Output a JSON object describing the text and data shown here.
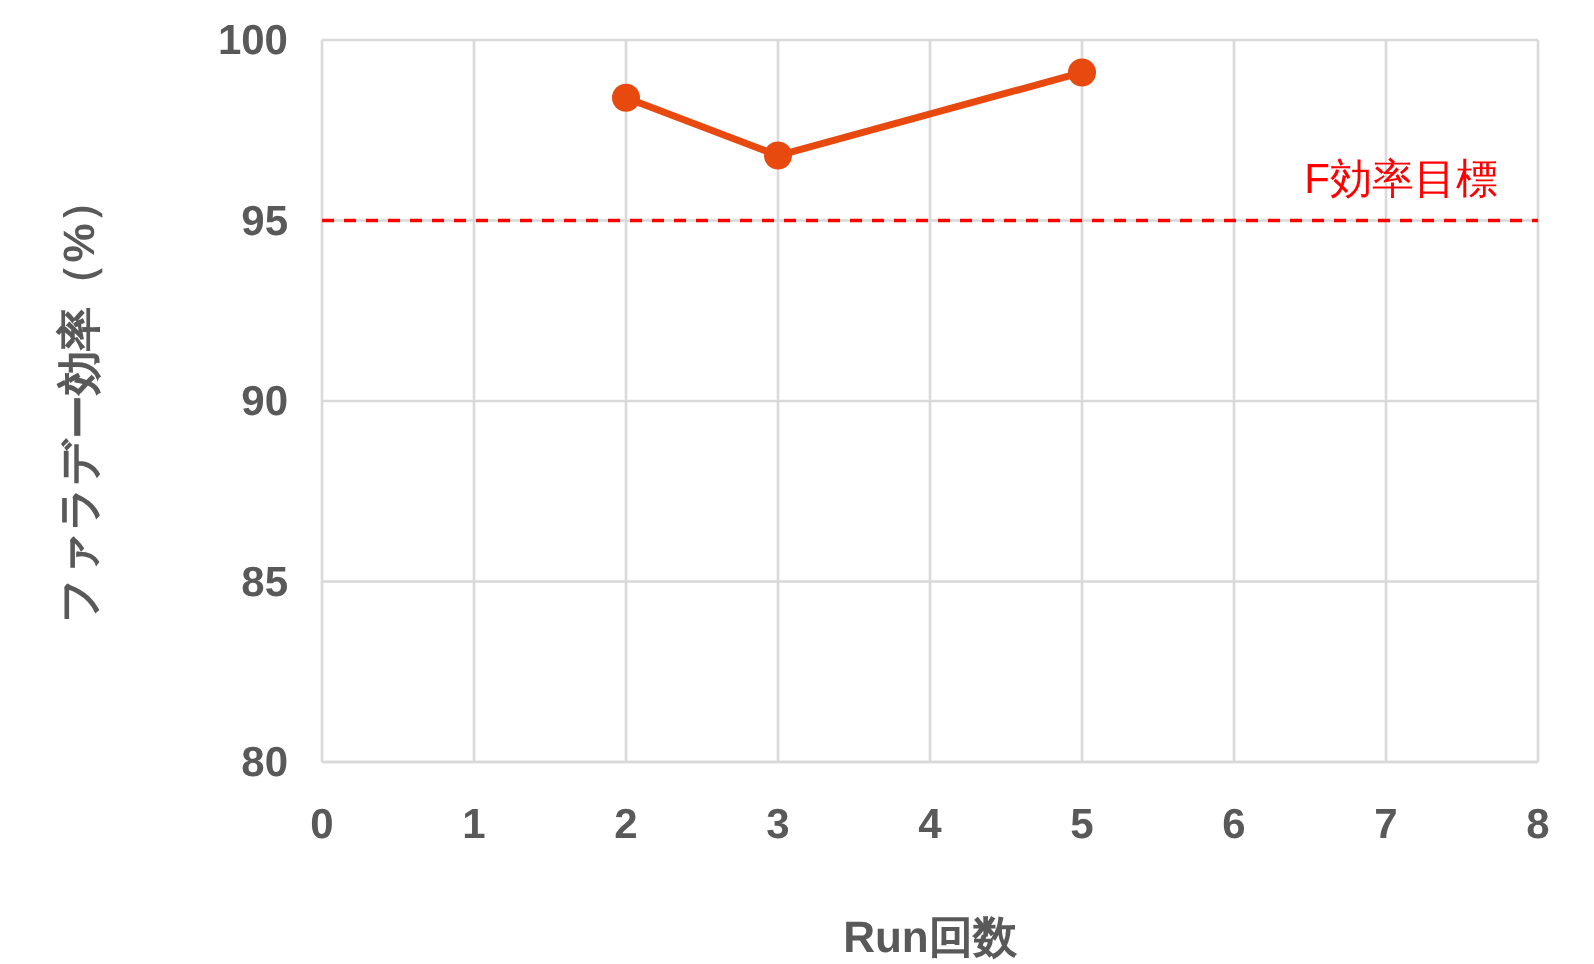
{
  "chart_data": {
    "type": "line",
    "xlabel": "Run回数",
    "ylabel": "ファラデー効率（%）",
    "x": [
      2,
      3,
      5
    ],
    "series": [
      {
        "color": "#e8490f",
        "values": [
          98.4,
          96.8,
          99.1
        ]
      }
    ],
    "xlim": [
      0,
      8
    ],
    "xticks": [
      0,
      1,
      2,
      3,
      4,
      5,
      6,
      7,
      8
    ],
    "ylim": [
      80,
      100
    ],
    "yticks": [
      80,
      85,
      90,
      95,
      100
    ],
    "grid": true,
    "marker": "circle",
    "line_style": "solid",
    "ref_lines": [
      {
        "axis": "y",
        "value": 95,
        "label": "F効率目標",
        "color": "#ff0000",
        "line_style": "dashed"
      }
    ]
  }
}
